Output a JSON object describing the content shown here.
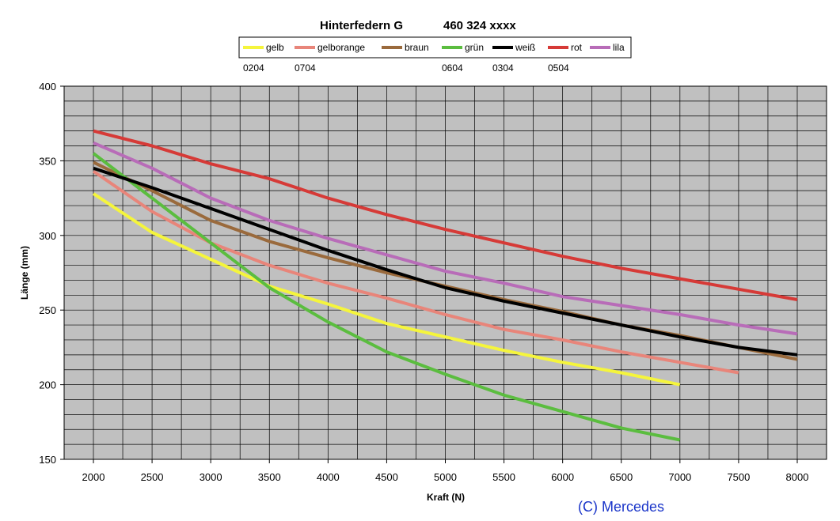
{
  "chart_data": {
    "type": "line",
    "title_left": "Hinterfedern G",
    "title_right": "460 324 xxxx",
    "xlabel": "Kraft (N)",
    "ylabel": "Länge (mm)",
    "xlim": [
      2000,
      8000
    ],
    "ylim": [
      150,
      400
    ],
    "x_ticks": [
      2000,
      2500,
      3000,
      3500,
      4000,
      4500,
      5000,
      5500,
      6000,
      6500,
      7000,
      7500,
      8000
    ],
    "y_ticks": [
      150,
      200,
      250,
      300,
      350,
      400
    ],
    "grid": true,
    "legend_position": "top-center",
    "series": [
      {
        "name": "gelb",
        "color": "#f5f53c",
        "points": [
          [
            2000,
            328
          ],
          [
            2500,
            302
          ],
          [
            3000,
            284
          ],
          [
            3500,
            266
          ],
          [
            4000,
            254
          ],
          [
            4500,
            241
          ],
          [
            5000,
            232
          ],
          [
            5500,
            223
          ],
          [
            6000,
            215
          ],
          [
            6500,
            208
          ],
          [
            7000,
            200
          ]
        ]
      },
      {
        "name": "gelborange",
        "color": "#e8857a",
        "points": [
          [
            2000,
            343
          ],
          [
            2500,
            316
          ],
          [
            3000,
            295
          ],
          [
            3500,
            280
          ],
          [
            4000,
            268
          ],
          [
            4500,
            258
          ],
          [
            5000,
            247
          ],
          [
            5500,
            237
          ],
          [
            6000,
            230
          ],
          [
            6500,
            222
          ],
          [
            7000,
            215
          ],
          [
            7500,
            208
          ]
        ]
      },
      {
        "name": "braun",
        "color": "#9a6a3c",
        "points": [
          [
            2000,
            349
          ],
          [
            2500,
            330
          ],
          [
            3000,
            310
          ],
          [
            3500,
            296
          ],
          [
            4000,
            285
          ],
          [
            4500,
            275
          ],
          [
            5000,
            266
          ],
          [
            5500,
            257
          ],
          [
            6000,
            249
          ],
          [
            6500,
            240
          ],
          [
            7000,
            233
          ],
          [
            7500,
            225
          ],
          [
            8000,
            217
          ]
        ]
      },
      {
        "name": "grün",
        "color": "#5bbd3f",
        "points": [
          [
            2000,
            355
          ],
          [
            2500,
            325
          ],
          [
            3000,
            295
          ],
          [
            3500,
            265
          ],
          [
            4000,
            242
          ],
          [
            4500,
            222
          ],
          [
            5000,
            207
          ],
          [
            5500,
            193
          ],
          [
            6000,
            182
          ],
          [
            6500,
            171
          ],
          [
            7000,
            163
          ]
        ]
      },
      {
        "name": "weiß",
        "color": "#000000",
        "points": [
          [
            2000,
            345
          ],
          [
            2500,
            332
          ],
          [
            3000,
            318
          ],
          [
            3500,
            304
          ],
          [
            4000,
            290
          ],
          [
            4500,
            277
          ],
          [
            5000,
            265
          ],
          [
            5500,
            256
          ],
          [
            6000,
            248
          ],
          [
            6500,
            240
          ],
          [
            7000,
            232
          ],
          [
            7500,
            225
          ],
          [
            8000,
            220
          ]
        ]
      },
      {
        "name": "rot",
        "color": "#d63a37",
        "points": [
          [
            2000,
            370
          ],
          [
            2500,
            360
          ],
          [
            3000,
            348
          ],
          [
            3500,
            338
          ],
          [
            4000,
            325
          ],
          [
            4500,
            314
          ],
          [
            5000,
            304
          ],
          [
            5500,
            295
          ],
          [
            6000,
            286
          ],
          [
            6500,
            278
          ],
          [
            7000,
            271
          ],
          [
            7500,
            264
          ],
          [
            8000,
            257
          ]
        ]
      },
      {
        "name": "lila",
        "color": "#b86cb8",
        "points": [
          [
            2000,
            362
          ],
          [
            2500,
            345
          ],
          [
            3000,
            325
          ],
          [
            3500,
            310
          ],
          [
            4000,
            298
          ],
          [
            4500,
            287
          ],
          [
            5000,
            276
          ],
          [
            5500,
            268
          ],
          [
            6000,
            259
          ],
          [
            6500,
            253
          ],
          [
            7000,
            247
          ],
          [
            7500,
            240
          ],
          [
            8000,
            234
          ]
        ]
      }
    ],
    "annotations": [
      {
        "text": "0204",
        "under": "gelb"
      },
      {
        "text": "0704",
        "under": "gelborange"
      },
      {
        "text": "0604",
        "under": "grün"
      },
      {
        "text": "0304",
        "under": "weiß"
      },
      {
        "text": "0504",
        "under": "rot"
      }
    ]
  },
  "copyright": "(C) Mercedes",
  "colors": {
    "plot_background": "#c0c0c0",
    "grid": "#000000",
    "copyright": "#1a35c9"
  }
}
